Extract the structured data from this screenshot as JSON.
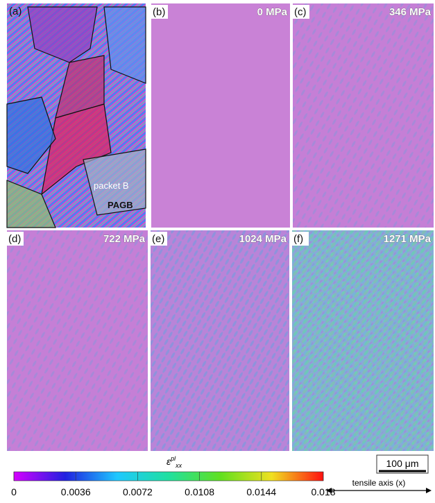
{
  "panels": [
    {
      "label": "(a)"
    },
    {
      "label": "(b)",
      "stress": "0 MPa"
    },
    {
      "label": "(c)",
      "stress": "346 MPa"
    },
    {
      "label": "(d)",
      "stress": "722 MPa"
    },
    {
      "label": "(e)",
      "stress": "1024 MPa"
    },
    {
      "label": "(f)",
      "stress": "1271 MPa"
    }
  ],
  "annotations": {
    "packet": "packet B",
    "boundary": "PAGB"
  },
  "colorbar": {
    "symbol": "ε",
    "sup": "pl",
    "sub": "xx",
    "range": [
      0,
      0.018
    ],
    "ticks": [
      0,
      0.0036,
      0.0072,
      0.0108,
      0.0144,
      0.018
    ],
    "colors": [
      "#d600ff",
      "#2020e0",
      "#20c8ff",
      "#20e0a0",
      "#60e020",
      "#f0e020",
      "#ff1010"
    ]
  },
  "scale_bar": "100 μm",
  "axis_note": "tensile axis (x)"
}
